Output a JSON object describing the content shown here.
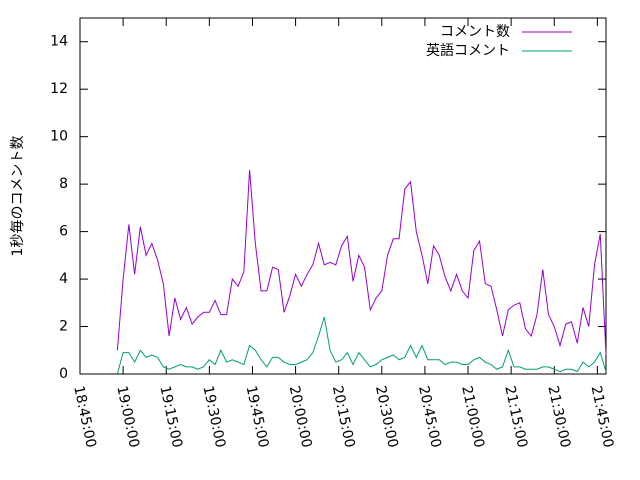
{
  "chart_data": {
    "type": "line",
    "ylabel": "1秒毎のコメント数",
    "x": [
      "18:58:00",
      "19:00:00",
      "19:02:00",
      "19:04:00",
      "19:06:00",
      "19:08:00",
      "19:10:00",
      "19:12:00",
      "19:14:00",
      "19:16:00",
      "19:18:00",
      "19:20:00",
      "19:22:00",
      "19:24:00",
      "19:26:00",
      "19:28:00",
      "19:30:00",
      "19:32:00",
      "19:34:00",
      "19:36:00",
      "19:38:00",
      "19:40:00",
      "19:42:00",
      "19:44:00",
      "19:46:00",
      "19:48:00",
      "19:50:00",
      "19:52:00",
      "19:54:00",
      "19:56:00",
      "19:58:00",
      "20:00:00",
      "20:02:00",
      "20:04:00",
      "20:06:00",
      "20:08:00",
      "20:10:00",
      "20:12:00",
      "20:14:00",
      "20:16:00",
      "20:18:00",
      "20:20:00",
      "20:22:00",
      "20:24:00",
      "20:26:00",
      "20:28:00",
      "20:30:00",
      "20:32:00",
      "20:34:00",
      "20:36:00",
      "20:38:00",
      "20:40:00",
      "20:42:00",
      "20:44:00",
      "20:46:00",
      "20:48:00",
      "20:50:00",
      "20:52:00",
      "20:54:00",
      "20:56:00",
      "20:58:00",
      "21:00:00",
      "21:02:00",
      "21:04:00",
      "21:06:00",
      "21:08:00",
      "21:10:00",
      "21:12:00",
      "21:14:00",
      "21:16:00",
      "21:18:00",
      "21:20:00",
      "21:22:00",
      "21:24:00",
      "21:26:00",
      "21:28:00",
      "21:30:00",
      "21:32:00",
      "21:34:00",
      "21:36:00",
      "21:38:00",
      "21:40:00",
      "21:42:00",
      "21:44:00",
      "21:46:00",
      "21:48:00"
    ],
    "series": [
      {
        "name": "コメント数",
        "color": "#9400d3",
        "values": [
          1.0,
          4.0,
          6.3,
          4.2,
          6.2,
          5.0,
          5.5,
          4.8,
          3.8,
          1.6,
          3.2,
          2.3,
          2.8,
          2.1,
          2.4,
          2.6,
          2.6,
          3.1,
          2.5,
          2.5,
          4.0,
          3.7,
          4.3,
          8.6,
          5.5,
          3.5,
          3.5,
          4.5,
          4.4,
          2.6,
          3.3,
          4.2,
          3.7,
          4.2,
          4.6,
          5.5,
          4.6,
          4.7,
          4.6,
          5.4,
          5.8,
          3.9,
          5.0,
          4.5,
          2.7,
          3.2,
          3.5,
          5.0,
          5.7,
          5.7,
          7.8,
          8.1,
          6.0,
          5.0,
          3.8,
          5.4,
          5.0,
          4.1,
          3.5,
          4.2,
          3.5,
          3.2,
          5.2,
          5.6,
          3.8,
          3.7,
          2.7,
          1.6,
          2.7,
          2.9,
          3.0,
          1.9,
          1.6,
          2.5,
          4.4,
          2.5,
          2.0,
          1.2,
          2.1,
          2.2,
          1.3,
          2.8,
          2.0,
          4.6,
          5.9,
          0.8
        ]
      },
      {
        "name": "英語コメント",
        "color": "#009e73",
        "values": [
          0.0,
          0.9,
          0.9,
          0.5,
          1.0,
          0.7,
          0.8,
          0.7,
          0.3,
          0.2,
          0.3,
          0.4,
          0.3,
          0.3,
          0.2,
          0.3,
          0.6,
          0.4,
          1.0,
          0.5,
          0.6,
          0.5,
          0.4,
          1.2,
          1.0,
          0.6,
          0.3,
          0.7,
          0.7,
          0.5,
          0.4,
          0.4,
          0.5,
          0.6,
          0.9,
          1.6,
          2.4,
          1.0,
          0.5,
          0.6,
          0.9,
          0.4,
          0.9,
          0.6,
          0.3,
          0.4,
          0.6,
          0.7,
          0.8,
          0.6,
          0.7,
          1.2,
          0.7,
          1.2,
          0.6,
          0.6,
          0.6,
          0.4,
          0.5,
          0.5,
          0.4,
          0.4,
          0.6,
          0.7,
          0.5,
          0.4,
          0.2,
          0.3,
          1.0,
          0.3,
          0.3,
          0.2,
          0.2,
          0.2,
          0.3,
          0.3,
          0.2,
          0.1,
          0.2,
          0.2,
          0.1,
          0.5,
          0.3,
          0.5,
          0.9,
          0.1
        ]
      }
    ],
    "xlim": [
      "18:45:00",
      "21:48:00"
    ],
    "xticks": [
      "18:45:00",
      "19:00:00",
      "19:15:00",
      "19:30:00",
      "19:45:00",
      "20:00:00",
      "20:15:00",
      "20:30:00",
      "20:45:00",
      "21:00:00",
      "21:15:00",
      "21:30:00",
      "21:45:00"
    ],
    "ylim": [
      0,
      15
    ],
    "yticks": [
      0,
      2,
      4,
      6,
      8,
      10,
      12,
      14
    ],
    "legend": "upper right"
  }
}
